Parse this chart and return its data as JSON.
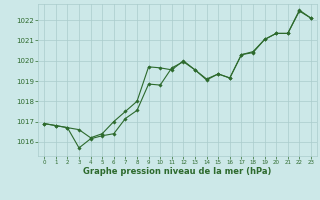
{
  "line1_y": [
    1016.9,
    1016.8,
    1016.7,
    1016.6,
    1016.2,
    1016.4,
    1017.0,
    1017.5,
    1018.0,
    1019.7,
    1019.65,
    1019.55,
    1020.0,
    1019.55,
    1019.1,
    1019.35,
    1019.15,
    1020.3,
    1020.4,
    1021.05,
    1021.35,
    1021.35,
    1022.45,
    1022.1
  ],
  "line2_y": [
    1016.9,
    1016.8,
    1016.7,
    1015.7,
    1016.15,
    1016.3,
    1016.4,
    1017.15,
    1017.55,
    1018.85,
    1018.8,
    1019.65,
    1019.95,
    1019.55,
    1019.05,
    1019.35,
    1019.15,
    1020.3,
    1020.45,
    1021.05,
    1021.35,
    1021.35,
    1022.5,
    1022.1
  ],
  "line_color": "#2d6a2d",
  "background_color": "#cce8e8",
  "grid_color": "#aacccc",
  "xlabel": "Graphe pression niveau de la mer (hPa)",
  "ylim": [
    1015.3,
    1022.8
  ],
  "xlim": [
    -0.5,
    23.5
  ],
  "yticks": [
    1016,
    1017,
    1018,
    1019,
    1020,
    1021,
    1022
  ],
  "xticks": [
    0,
    1,
    2,
    3,
    4,
    5,
    6,
    7,
    8,
    9,
    10,
    11,
    12,
    13,
    14,
    15,
    16,
    17,
    18,
    19,
    20,
    21,
    22,
    23
  ]
}
